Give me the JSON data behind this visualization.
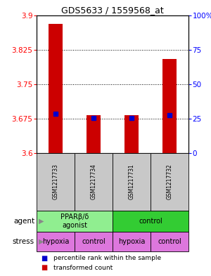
{
  "title": "GDS5633 / 1559568_at",
  "samples": [
    "GSM1217733",
    "GSM1217734",
    "GSM1217731",
    "GSM1217732"
  ],
  "red_bar_values": [
    3.882,
    3.683,
    3.683,
    3.805
  ],
  "blue_dot_values": [
    3.685,
    3.677,
    3.677,
    3.682
  ],
  "y_min": 3.6,
  "y_max": 3.9,
  "y_ticks": [
    3.6,
    3.675,
    3.75,
    3.825,
    3.9
  ],
  "y_tick_labels": [
    "3.6",
    "3.675",
    "3.75",
    "3.825",
    "3.9"
  ],
  "y2_ticks": [
    0,
    25,
    50,
    75,
    100
  ],
  "y2_tick_labels": [
    "0",
    "25",
    "50",
    "75",
    "100%"
  ],
  "agent_label_left": "PPARβ/δ\nagonist",
  "agent_label_right": "control",
  "agent_color_left": "#90EE90",
  "agent_color_right": "#33CC33",
  "stress_labels": [
    "hypoxia",
    "control",
    "hypoxia",
    "control"
  ],
  "stress_color": "#DD77DD",
  "bar_color": "#CC0000",
  "dot_color": "#0000CC",
  "sample_bg": "#C8C8C8",
  "bg_color": "#FFFFFF",
  "title_fontsize": 9,
  "tick_fontsize": 7.5,
  "sample_fontsize": 5.5,
  "table_fontsize": 7,
  "legend_fontsize": 6.5,
  "label_fontsize": 7.5
}
